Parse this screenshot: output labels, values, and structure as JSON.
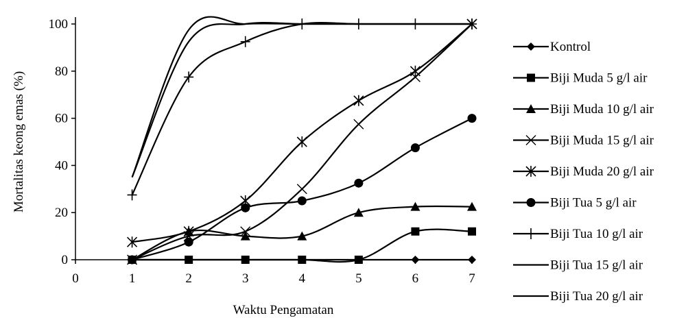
{
  "chart_data": {
    "type": "line",
    "xlabel": "Waktu Pengamatan",
    "ylabel": "Mortalitas keong emas (%)",
    "xlim": [
      0,
      7
    ],
    "ylim": [
      0,
      100
    ],
    "x_ticks": [
      "0",
      "1",
      "2",
      "3",
      "4",
      "5",
      "6",
      "7"
    ],
    "y_ticks": [
      "0",
      "20",
      "40",
      "60",
      "80",
      "100"
    ],
    "grid": false,
    "legend_position": "right",
    "x": [
      1,
      2,
      3,
      4,
      5,
      6,
      7
    ],
    "series": [
      {
        "name": "Kontrol",
        "marker": "diamond",
        "values": [
          0,
          0,
          0,
          0,
          0,
          0,
          0
        ]
      },
      {
        "name": "Biji Muda 5 g/l air",
        "marker": "square",
        "values": [
          0,
          0,
          0,
          0,
          0,
          12,
          12
        ]
      },
      {
        "name": "Biji Muda 10 g/l air",
        "marker": "triangle",
        "values": [
          0,
          12,
          10,
          10,
          20,
          22.5,
          22.5
        ]
      },
      {
        "name": "Biji Muda 15 g/l air",
        "marker": "x",
        "values": [
          0,
          10,
          12,
          30,
          57.5,
          77.5,
          100
        ]
      },
      {
        "name": "Biji Muda 20 g/l air",
        "marker": "star",
        "values": [
          7.5,
          12,
          25,
          50,
          67.5,
          80,
          100
        ]
      },
      {
        "name": "Biji Tua 5 g/l air",
        "marker": "circle",
        "values": [
          0,
          7.5,
          22,
          25,
          32.5,
          47.5,
          60
        ]
      },
      {
        "name": "Biji Tua 10 g/l air",
        "marker": "plus",
        "values": [
          27.5,
          77.5,
          92.5,
          100,
          100,
          100,
          100
        ]
      },
      {
        "name": "Biji Tua 15 g/l air",
        "marker": "none",
        "values": [
          35,
          92.5,
          100,
          100,
          100,
          100,
          100
        ]
      },
      {
        "name": "Biji Tua 20 g/l air",
        "marker": "none",
        "values": [
          35,
          97.5,
          100,
          100,
          100,
          100,
          100
        ]
      }
    ]
  }
}
